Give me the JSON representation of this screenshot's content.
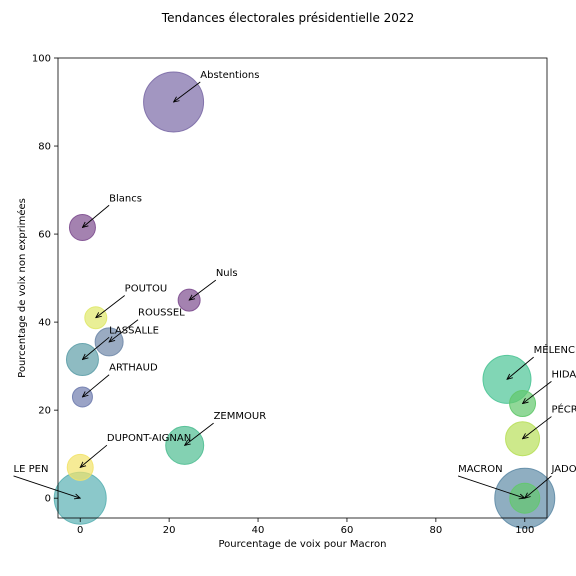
{
  "chart_data": {
    "type": "scatter",
    "title": "Tendances électorales présidentielle 2022",
    "xlabel": "Pourcentage de voix pour Macron",
    "ylabel": "Pourcentage de voix non exprimées",
    "xlim": [
      -5,
      105
    ],
    "ylim": [
      -4.5,
      100
    ],
    "xticks": [
      0,
      20,
      40,
      60,
      80,
      100
    ],
    "yticks": [
      0,
      20,
      40,
      60,
      80,
      100
    ],
    "grid": false,
    "points": [
      {
        "label": "Abstentions",
        "x": 21,
        "y": 90,
        "size": 30,
        "color": "#7b6aa6",
        "text_x": 27,
        "text_y": 95
      },
      {
        "label": "Blancs",
        "x": 0.5,
        "y": 61.5,
        "size": 13,
        "color": "#7d4d8f",
        "text_x": 6.5,
        "text_y": 67
      },
      {
        "label": "Nuls",
        "x": 24.5,
        "y": 45,
        "size": 11,
        "color": "#7d4d8f",
        "text_x": 30.5,
        "text_y": 50
      },
      {
        "label": "POUTOU",
        "x": 3.5,
        "y": 41,
        "size": 11,
        "color": "#dfe86a",
        "text_x": 10,
        "text_y": 46.5
      },
      {
        "label": "ROUSSEL",
        "x": 6.5,
        "y": 35.5,
        "size": 14,
        "color": "#6f88a8",
        "text_x": 13,
        "text_y": 41
      },
      {
        "label": "LASSALLE",
        "x": 0.5,
        "y": 31.5,
        "size": 16,
        "color": "#5e9ea8",
        "text_x": 6.5,
        "text_y": 37
      },
      {
        "label": "ARTHAUD",
        "x": 0.5,
        "y": 23,
        "size": 10,
        "color": "#6f7cae",
        "text_x": 6.5,
        "text_y": 28.5
      },
      {
        "label": "ZEMMOUR",
        "x": 23.5,
        "y": 12,
        "size": 19,
        "color": "#4fbe92",
        "text_x": 30,
        "text_y": 17.5
      },
      {
        "label": "DUPONT-AIGNAN",
        "x": 0,
        "y": 7,
        "size": 13,
        "color": "#f2e36a",
        "text_x": 6,
        "text_y": 12.5
      },
      {
        "label": "LE PEN",
        "x": 0,
        "y": 0,
        "size": 26,
        "color": "#5ab1b3",
        "text_x": -15,
        "text_y": 5.5
      },
      {
        "label": "MÉLENCHON",
        "x": 96,
        "y": 27,
        "size": 24,
        "color": "#4cc496",
        "text_x": 102,
        "text_y": 32.5
      },
      {
        "label": "HIDALGO",
        "x": 99.5,
        "y": 21.5,
        "size": 13,
        "color": "#62c86c",
        "text_x": 106,
        "text_y": 27
      },
      {
        "label": "PÉCRESSE",
        "x": 99.5,
        "y": 13.5,
        "size": 17,
        "color": "#b8df5a",
        "text_x": 106,
        "text_y": 19
      },
      {
        "label": "MACRON",
        "x": 100,
        "y": 0,
        "size": 30,
        "color": "#5f8ba6",
        "text_x": 85,
        "text_y": 5.5
      },
      {
        "label": "JADOT",
        "x": 100,
        "y": 0,
        "size": 15,
        "color": "#62c86c",
        "text_x": 106,
        "text_y": 5.5
      }
    ]
  }
}
